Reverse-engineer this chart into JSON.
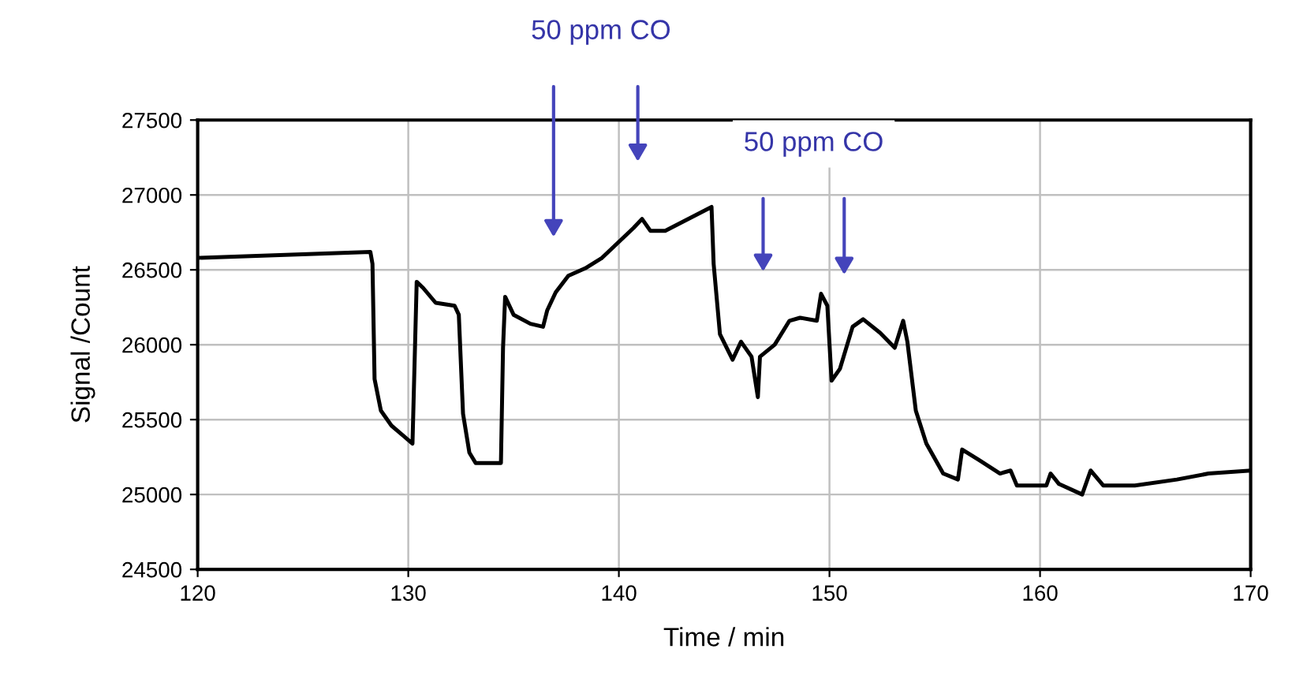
{
  "chart_data": {
    "type": "line",
    "xlabel": "Time / min",
    "ylabel": "Signal /Count",
    "x": [
      120,
      128.2,
      128.3,
      128.4,
      128.7,
      129.2,
      130.2,
      130.3,
      130.4,
      130.7,
      131.3,
      132.2,
      132.4,
      132.6,
      132.9,
      133.2,
      134.4,
      134.5,
      134.6,
      135.0,
      135.8,
      136.4,
      136.6,
      137.0,
      137.6,
      138.4,
      139.2,
      140.7,
      141.1,
      141.5,
      142.2,
      144.4,
      144.5,
      144.8,
      145.4,
      145.8,
      146.3,
      146.6,
      146.7,
      147.4,
      148.1,
      148.6,
      149.4,
      149.6,
      149.9,
      150.1,
      150.5,
      151.1,
      151.6,
      152.4,
      153.1,
      153.5,
      153.7,
      154.1,
      154.6,
      155.4,
      156.1,
      156.3,
      157.1,
      158.1,
      158.6,
      158.9,
      160.3,
      160.5,
      160.9,
      162.0,
      162.4,
      163.0,
      164.5,
      166.5,
      168.0,
      170.0
    ],
    "series": [
      {
        "color": "#000000",
        "values": [
          26580,
          26620,
          26540,
          25770,
          25560,
          25460,
          25340,
          25880,
          26420,
          26380,
          26280,
          26260,
          26200,
          25540,
          25280,
          25210,
          25210,
          25980,
          26320,
          26200,
          26140,
          26120,
          26230,
          26350,
          26460,
          26510,
          26580,
          26780,
          26840,
          26760,
          26760,
          26920,
          26540,
          26070,
          25900,
          26020,
          25920,
          25650,
          25920,
          26000,
          26160,
          26180,
          26160,
          26340,
          26260,
          25760,
          25840,
          26120,
          26170,
          26080,
          25980,
          26160,
          26020,
          25560,
          25340,
          25140,
          25100,
          25300,
          25230,
          25140,
          25160,
          25060,
          25060,
          25140,
          25070,
          25000,
          25160,
          25060,
          25060,
          25100,
          25140,
          25160
        ]
      }
    ],
    "xlim": [
      120,
      170
    ],
    "xticks": [
      120,
      130,
      140,
      150,
      160,
      170
    ],
    "ylim": [
      24500,
      27500
    ],
    "yticks": [
      24500,
      25000,
      25500,
      26000,
      26500,
      27000,
      27500
    ],
    "grid": true,
    "marker": "none",
    "line_style": "solid",
    "annotations": [
      "50 ppm CO",
      "50 ppm CO"
    ]
  }
}
